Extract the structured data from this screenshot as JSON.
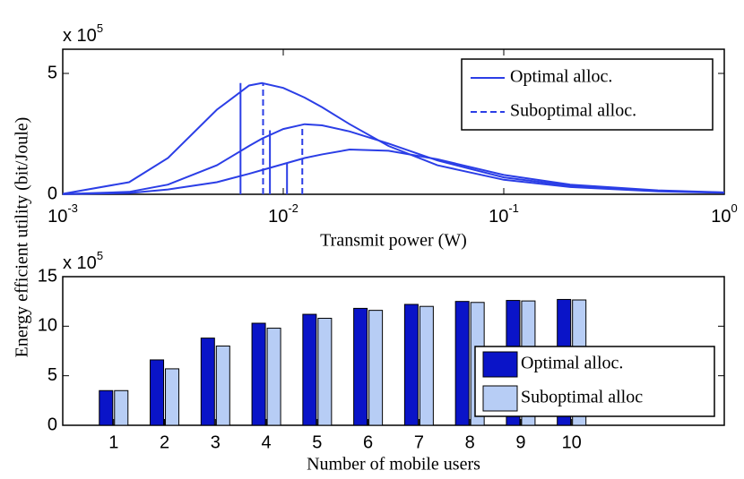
{
  "chart_data": [
    {
      "type": "line",
      "xscale": "log",
      "ylabel": "Energy efficient utility (bit/Joule)",
      "xlabel": "Transmit power (W)",
      "multiplier": "x 10",
      "multiplier_exp": "5",
      "xlim": [
        0.001,
        1
      ],
      "ylim": [
        0,
        6
      ],
      "xticks": [
        {
          "value": 0.001,
          "label": "10",
          "exp": "-3"
        },
        {
          "value": 0.01,
          "label": "10",
          "exp": "-2"
        },
        {
          "value": 0.1,
          "label": "10",
          "exp": "-1"
        },
        {
          "value": 1,
          "label": "10",
          "exp": "0"
        }
      ],
      "yticks": [
        0,
        5
      ],
      "legend": "upper right",
      "color": "#2b3ee6",
      "x": [
        0.001,
        0.002,
        0.003,
        0.005,
        0.007,
        0.008,
        0.01,
        0.0125,
        0.015,
        0.02,
        0.03,
        0.05,
        0.1,
        0.2,
        0.5,
        1
      ],
      "curves": [
        {
          "values": [
            0.02,
            0.5,
            1.5,
            3.5,
            4.5,
            4.6,
            4.4,
            4.0,
            3.6,
            2.9,
            2.0,
            1.2,
            0.6,
            0.3,
            0.12,
            0.06
          ]
        },
        {
          "values": [
            0.01,
            0.1,
            0.4,
            1.2,
            2.0,
            2.3,
            2.7,
            2.9,
            2.85,
            2.6,
            2.1,
            1.4,
            0.7,
            0.35,
            0.14,
            0.07
          ]
        },
        {
          "values": [
            0.005,
            0.05,
            0.2,
            0.5,
            0.85,
            1.0,
            1.25,
            1.5,
            1.65,
            1.85,
            1.8,
            1.45,
            0.8,
            0.4,
            0.16,
            0.08
          ]
        }
      ],
      "markers": [
        {
          "name": "Optimal alloc.",
          "dashed": false,
          "x": [
            0.0064,
            0.0087,
            0.0104
          ],
          "values": [
            4.6,
            2.65,
            1.3
          ]
        },
        {
          "name": "Suboptimal alloc.",
          "dashed": true,
          "x": [
            0.0081,
            0.0122
          ],
          "values": [
            4.6,
            2.9
          ]
        }
      ]
    },
    {
      "type": "bar",
      "xlabel": "Number of mobile users",
      "multiplier": "x 10",
      "multiplier_exp": "5",
      "x": [
        1,
        2,
        3,
        4,
        5,
        6,
        7,
        8,
        9,
        10
      ],
      "xlim": [
        0,
        13
      ],
      "xticks": [
        1,
        2,
        3,
        4,
        5,
        6,
        7,
        8,
        9,
        10
      ],
      "ylim": [
        0,
        15
      ],
      "yticks": [
        0,
        5,
        10,
        15
      ],
      "legend": "lower right",
      "series": [
        {
          "name": "Optimal alloc.",
          "color": "#0a14c8",
          "values": [
            3.5,
            6.6,
            8.8,
            10.3,
            11.2,
            11.8,
            12.2,
            12.5,
            12.6,
            12.7
          ]
        },
        {
          "name": "Suboptimal alloc",
          "color": "#b7cdf5",
          "values": [
            3.5,
            5.7,
            8.0,
            9.8,
            10.8,
            11.6,
            12.0,
            12.4,
            12.55,
            12.65
          ]
        }
      ]
    }
  ]
}
